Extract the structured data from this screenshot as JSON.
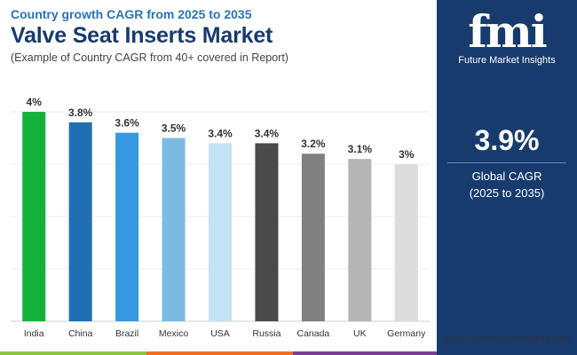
{
  "header": {
    "subtitle_top": "Country growth CAGR from 2025 to 2035",
    "title": "Valve Seat Inserts Market",
    "subtitle_bottom": "(Example of Country CAGR from 40+ covered in Report)"
  },
  "chart_data": {
    "type": "bar",
    "title": "Valve Seat Inserts Market",
    "categories": [
      "India",
      "China",
      "Brazil",
      "Mexico",
      "USA",
      "Russia",
      "Canada",
      "UK",
      "Germany"
    ],
    "values": [
      4,
      3.8,
      3.6,
      3.5,
      3.4,
      3.4,
      3.2,
      3.1,
      3
    ],
    "value_labels": [
      "4%",
      "3.8%",
      "3.6%",
      "3.5%",
      "3.4%",
      "3.4%",
      "3.2%",
      "3.1%",
      "3%"
    ],
    "colors": [
      "#13b13a",
      "#1f6fb2",
      "#3499e0",
      "#7bbbe3",
      "#c3e2f3",
      "#4a4a4a",
      "#808080",
      "#b5b5b5",
      "#dcdcdc"
    ],
    "ylim": [
      0,
      4
    ],
    "xlabel": "",
    "ylabel": "",
    "grid": true
  },
  "side_panel": {
    "logo_mark": "fmi",
    "logo_text": "Future Market Insights",
    "cagr_value": "3.9%",
    "cagr_label_1": "Global CAGR",
    "cagr_label_2": "(2025 to 2035)"
  },
  "footer": {
    "url": "www.futuremarketinsights.com"
  },
  "colors": {
    "panel": "#173b6d",
    "accent_blue": "#2a73b8",
    "bar_green": "#8dc63f",
    "bar_orange": "#f26f21",
    "bar_purple": "#7b3f98"
  }
}
